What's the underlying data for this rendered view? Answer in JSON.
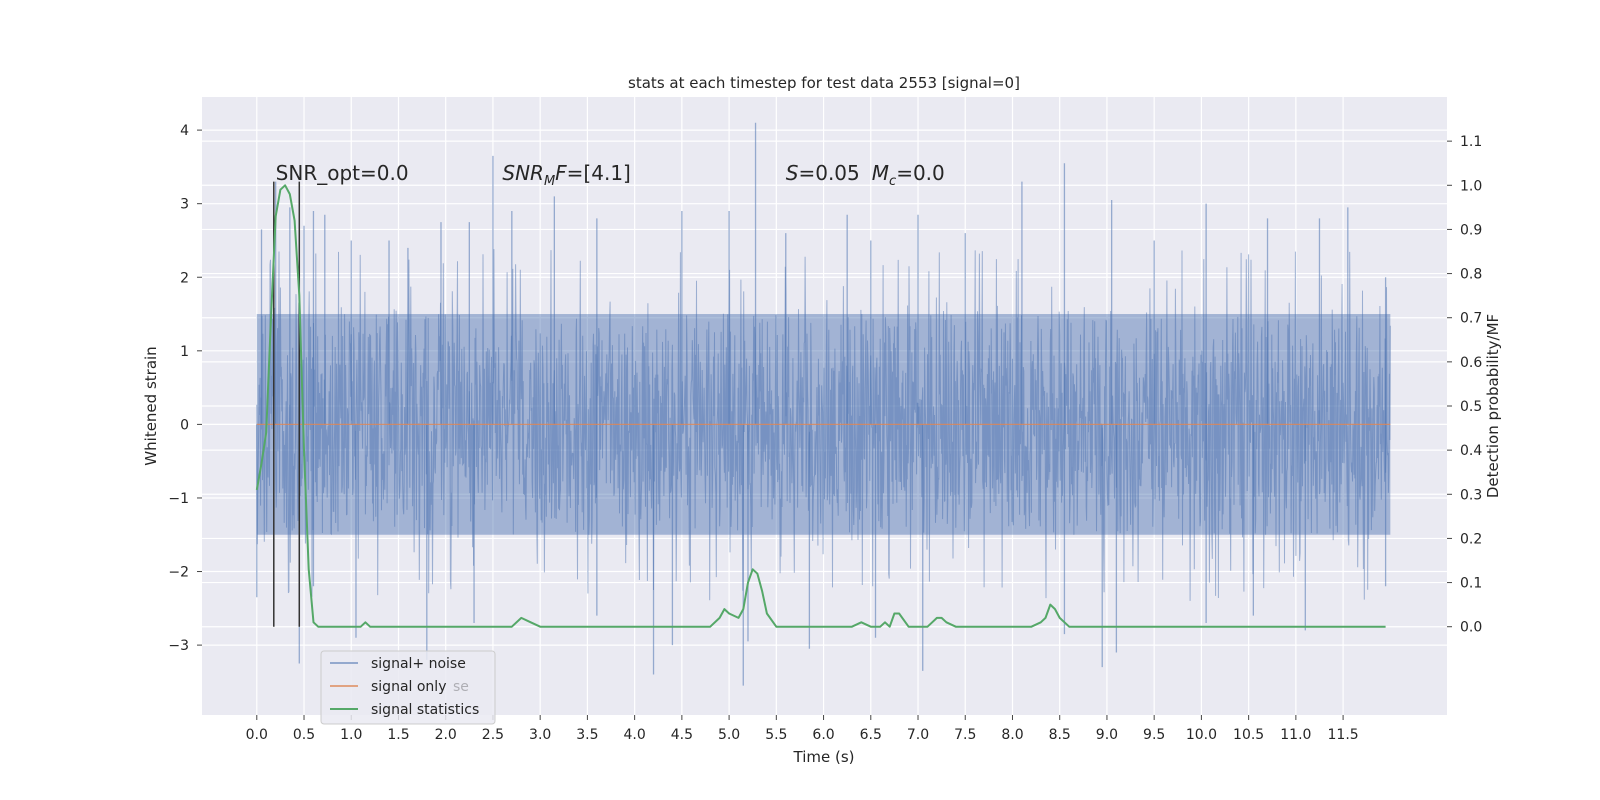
{
  "chart_data": {
    "type": "line",
    "title": "stats at each timestep for test data 2553 [signal=0]",
    "xlabel": "Time (s)",
    "ylabel": "Whitened strain",
    "ylabel_right": "Detection probability/MF",
    "xlim": [
      -0.58,
      12.6
    ],
    "ylim": [
      -3.95,
      4.45
    ],
    "ylim_right": [
      -0.2,
      1.2
    ],
    "x_ticks": [
      "0.0",
      "0.5",
      "1.0",
      "1.5",
      "2.0",
      "2.5",
      "3.0",
      "3.5",
      "4.0",
      "4.5",
      "5.0",
      "5.5",
      "6.0",
      "6.5",
      "7.0",
      "7.5",
      "8.0",
      "8.5",
      "9.0",
      "9.5",
      "10.0",
      "10.5",
      "11.0",
      "11.5"
    ],
    "y_ticks": [
      "4",
      "3",
      "2",
      "1",
      "0",
      "−1",
      "−2",
      "−3"
    ],
    "y_ticks_right": [
      "1.1",
      "1.0",
      "0.9",
      "0.8",
      "0.7",
      "0.6",
      "0.5",
      "0.4",
      "0.3",
      "0.2",
      "0.1",
      "0.0"
    ],
    "grid": true,
    "legend_position": "lower-left",
    "colors": {
      "background": "#eaeaf2",
      "signal_noise": "#4c72b0",
      "signal_only": "#dd8452",
      "signal_statistics": "#55a868",
      "window_lines": "#333333"
    },
    "series": [
      {
        "name": "signal+ noise",
        "axis": "left",
        "style": "dense-noise",
        "x_range": [
          0.0,
          12.0
        ],
        "core_band": [
          -1.5,
          1.5
        ],
        "peaks": [
          [
            0.05,
            2.65
          ],
          [
            0.2,
            3.3
          ],
          [
            0.35,
            2.95
          ],
          [
            0.5,
            2.7
          ],
          [
            0.6,
            2.9
          ],
          [
            0.72,
            2.85
          ],
          [
            1.0,
            2.5
          ],
          [
            1.4,
            2.5
          ],
          [
            1.6,
            2.4
          ],
          [
            1.95,
            2.75
          ],
          [
            2.25,
            2.75
          ],
          [
            2.5,
            3.65
          ],
          [
            2.7,
            2.9
          ],
          [
            3.15,
            3.1
          ],
          [
            3.6,
            2.8
          ],
          [
            4.5,
            2.9
          ],
          [
            5.0,
            2.9
          ],
          [
            5.28,
            4.1
          ],
          [
            5.6,
            2.6
          ],
          [
            6.25,
            2.85
          ],
          [
            6.5,
            2.5
          ],
          [
            7.0,
            2.85
          ],
          [
            7.5,
            2.6
          ],
          [
            8.1,
            3.3
          ],
          [
            8.55,
            3.55
          ],
          [
            9.05,
            3.05
          ],
          [
            9.5,
            2.5
          ],
          [
            10.05,
            3.0
          ],
          [
            10.7,
            2.8
          ],
          [
            11.25,
            2.8
          ],
          [
            11.55,
            2.95
          ],
          [
            11.95,
            2.0
          ]
        ],
        "troughs": [
          [
            0.0,
            -2.35
          ],
          [
            0.45,
            -3.25
          ],
          [
            0.6,
            -2.2
          ],
          [
            1.05,
            -2.9
          ],
          [
            1.8,
            -3.2
          ],
          [
            2.3,
            -2.7
          ],
          [
            3.6,
            -2.6
          ],
          [
            4.2,
            -3.4
          ],
          [
            4.4,
            -3.0
          ],
          [
            5.15,
            -3.55
          ],
          [
            5.2,
            -2.95
          ],
          [
            5.85,
            -3.05
          ],
          [
            6.55,
            -2.9
          ],
          [
            7.05,
            -3.35
          ],
          [
            8.55,
            -2.85
          ],
          [
            8.95,
            -3.3
          ],
          [
            9.1,
            -3.1
          ],
          [
            10.05,
            -2.7
          ],
          [
            10.55,
            -2.6
          ],
          [
            11.1,
            -2.8
          ],
          [
            11.95,
            -2.2
          ]
        ]
      },
      {
        "name": "signal only",
        "axis": "left",
        "x": [
          0.0,
          12.0
        ],
        "y": [
          0.0,
          0.0
        ]
      },
      {
        "name": "signal statistics",
        "axis": "right",
        "x": [
          0.0,
          0.05,
          0.1,
          0.15,
          0.2,
          0.25,
          0.3,
          0.35,
          0.4,
          0.45,
          0.5,
          0.55,
          0.6,
          0.65,
          0.7,
          0.8,
          0.9,
          1.0,
          1.1,
          1.15,
          1.2,
          1.3,
          1.4,
          1.6,
          1.8,
          2.0,
          2.2,
          2.4,
          2.6,
          2.7,
          2.8,
          2.9,
          3.0,
          3.2,
          3.4,
          3.6,
          3.8,
          4.0,
          4.2,
          4.4,
          4.6,
          4.8,
          4.9,
          4.95,
          5.0,
          5.1,
          5.15,
          5.2,
          5.25,
          5.3,
          5.35,
          5.4,
          5.5,
          5.7,
          5.9,
          6.0,
          6.1,
          6.2,
          6.3,
          6.4,
          6.5,
          6.6,
          6.65,
          6.7,
          6.75,
          6.8,
          6.9,
          7.0,
          7.1,
          7.15,
          7.2,
          7.25,
          7.3,
          7.4,
          7.6,
          7.8,
          8.0,
          8.2,
          8.3,
          8.35,
          8.4,
          8.45,
          8.5,
          8.6,
          8.8,
          9.0,
          9.2,
          9.4,
          9.6,
          9.8,
          10.0,
          10.5,
          11.0,
          11.5,
          11.95
        ],
        "y": [
          0.31,
          0.37,
          0.44,
          0.7,
          0.93,
          0.99,
          1.0,
          0.98,
          0.92,
          0.75,
          0.4,
          0.13,
          0.01,
          0.0,
          0.0,
          0.0,
          0.0,
          0.0,
          0.0,
          0.01,
          0.0,
          0.0,
          0.0,
          0.0,
          0.0,
          0.0,
          0.0,
          0.0,
          0.0,
          0.0,
          0.02,
          0.01,
          0.0,
          0.0,
          0.0,
          0.0,
          0.0,
          0.0,
          0.0,
          0.0,
          0.0,
          0.0,
          0.02,
          0.04,
          0.03,
          0.02,
          0.04,
          0.1,
          0.13,
          0.12,
          0.08,
          0.03,
          0.0,
          0.0,
          0.0,
          0.0,
          0.0,
          0.0,
          0.0,
          0.01,
          0.0,
          0.0,
          0.01,
          0.0,
          0.03,
          0.03,
          0.0,
          0.0,
          0.0,
          0.01,
          0.02,
          0.02,
          0.01,
          0.0,
          0.0,
          0.0,
          0.0,
          0.0,
          0.01,
          0.02,
          0.05,
          0.04,
          0.02,
          0.0,
          0.0,
          0.0,
          0.0,
          0.0,
          0.0,
          0.0,
          0.0,
          0.0,
          0.0,
          0.0,
          0.0
        ]
      }
    ],
    "vertical_lines": [
      {
        "x": 0.18,
        "y_range": [
          -2.75,
          3.3
        ]
      },
      {
        "x": 0.45,
        "y_range": [
          -2.75,
          3.3
        ]
      }
    ],
    "annotations": [
      {
        "kind": "snr_opt",
        "text": "SNR_opt=0.0",
        "x": 0.2,
        "y": 3.32
      },
      {
        "kind": "snr_mf",
        "base": "SNR",
        "sub": "M",
        "tail": "F=[4.1]",
        "x": 2.6,
        "y": 3.32
      },
      {
        "kind": "s_mc",
        "s_label": "S",
        "s_tail": "=0.05",
        "m_label": "M",
        "m_sub": "c",
        "m_tail": "=0.0",
        "x": 5.6,
        "y": 3.32
      }
    ],
    "legend": {
      "entries": [
        "signal+ noise",
        "signal only",
        "signal statistics"
      ],
      "overlap_text": "se"
    }
  }
}
